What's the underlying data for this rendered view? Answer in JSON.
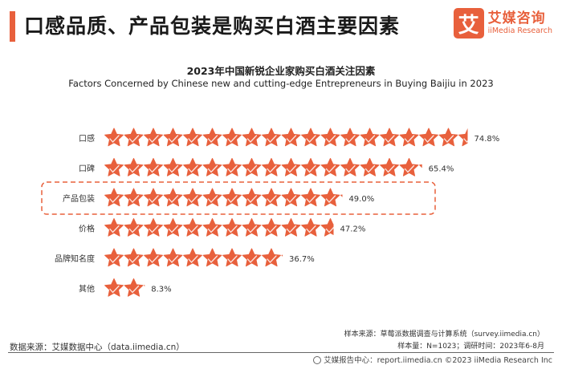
{
  "header": {
    "title": "口感品质、产品包装是购买白酒主要因素",
    "logo_mark": "艾",
    "logo_cn": "艾媒咨询",
    "logo_en": "iiMedia Research",
    "accent_color": "#e8603c"
  },
  "chart_data": {
    "type": "bar",
    "title": "2023年中国新锐企业家购买白酒关注因素",
    "subtitle": "Factors Concerned by Chinese new and cutting-edge Entrepreneurs in Buying Baijiu in 2023",
    "categories": [
      "口感",
      "口碑",
      "产品包装",
      "价格",
      "品牌知名度",
      "其他"
    ],
    "values": [
      74.8,
      65.4,
      49.0,
      47.2,
      36.7,
      8.3
    ],
    "value_labels": [
      "74.8%",
      "65.4%",
      "49.0%",
      "47.2%",
      "36.7%",
      "8.3%"
    ],
    "unit": "%",
    "mark": "star-icon",
    "highlighted_category": "产品包装",
    "bar_color": "#e8603c",
    "highlight_border_color": "#e8603c"
  },
  "notes": {
    "sample_source": "样本来源：草莓派数据调查与计算系统（survey.iimedia.cn）",
    "sample_info": "样本量：N=1023；调研时间：2023年6-8月",
    "data_source": "数据来源：艾媒数据中心（data.iimedia.cn）",
    "copyright": "艾媒报告中心：report.iimedia.cn  ©2023  iiMedia Research  Inc"
  }
}
